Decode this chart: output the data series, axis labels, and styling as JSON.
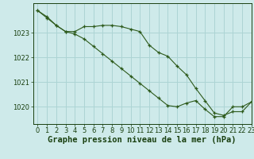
{
  "title": "Graphe pression niveau de la mer (hPa)",
  "background_color": "#ceeaea",
  "grid_color": "#acd4d4",
  "line_color": "#2d5a1b",
  "marker_color": "#2d5a1b",
  "xlim": [
    -0.5,
    23
  ],
  "ylim": [
    1019.3,
    1024.2
  ],
  "yticks": [
    1020,
    1021,
    1022,
    1023
  ],
  "xticks": [
    0,
    1,
    2,
    3,
    4,
    5,
    6,
    7,
    8,
    9,
    10,
    11,
    12,
    13,
    14,
    15,
    16,
    17,
    18,
    19,
    20,
    21,
    22,
    23
  ],
  "series1_x": [
    0,
    1,
    2,
    3,
    4,
    5,
    6,
    7,
    8,
    9,
    10,
    11,
    12,
    13,
    14,
    15,
    16,
    17,
    18,
    19,
    20,
    21,
    22,
    23
  ],
  "series1_y": [
    1023.9,
    1023.65,
    1023.3,
    1023.05,
    1023.05,
    1023.25,
    1023.25,
    1023.3,
    1023.3,
    1023.25,
    1023.15,
    1023.05,
    1022.5,
    1022.2,
    1022.05,
    1021.65,
    1021.3,
    1020.75,
    1020.25,
    1019.75,
    1019.65,
    1019.8,
    1019.8,
    1020.2
  ],
  "series2_x": [
    0,
    1,
    2,
    3,
    4,
    5,
    6,
    7,
    8,
    9,
    10,
    11,
    12,
    13,
    14,
    15,
    16,
    17,
    18,
    19,
    20,
    21,
    22,
    23
  ],
  "series2_y": [
    1023.9,
    1023.6,
    1023.3,
    1023.05,
    1022.95,
    1022.75,
    1022.45,
    1022.15,
    1021.85,
    1021.55,
    1021.25,
    1020.95,
    1020.65,
    1020.35,
    1020.05,
    1020.0,
    1020.15,
    1020.25,
    1019.9,
    1019.6,
    1019.6,
    1020.0,
    1020.0,
    1020.2
  ],
  "title_fontsize": 7.5,
  "tick_fontsize": 6,
  "tick_color": "#1a4010",
  "ylabel_fontsize": 7
}
